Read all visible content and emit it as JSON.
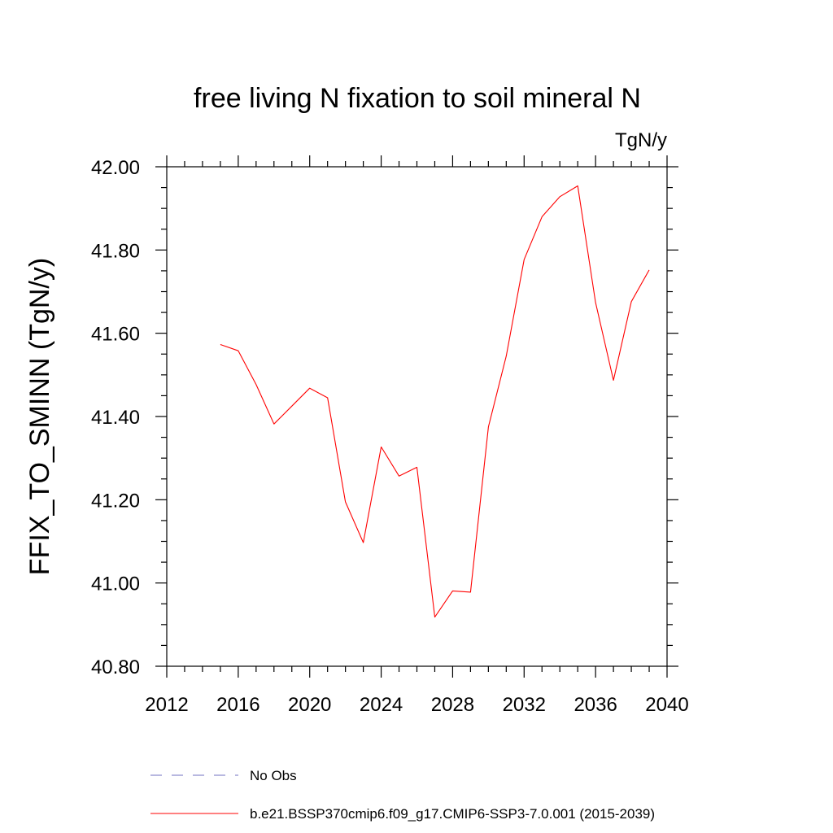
{
  "chart_data": {
    "type": "line",
    "title": "free living N fixation to soil mineral N",
    "units": "TgN/y",
    "ylabel": "FFIX_TO_SMINN  (TgN/y)",
    "xlabel": "",
    "xlim": [
      2012,
      2040
    ],
    "ylim": [
      40.8,
      42.0
    ],
    "xticks": [
      2012,
      2016,
      2020,
      2024,
      2028,
      2032,
      2036,
      2040
    ],
    "xtick_labels": [
      "2012",
      "2016",
      "2020",
      "2024",
      "2028",
      "2032",
      "2036",
      "2040"
    ],
    "yticks": [
      40.8,
      41.0,
      41.2,
      41.4,
      41.6,
      41.8,
      42.0
    ],
    "ytick_labels": [
      "40.80",
      "41.00",
      "41.20",
      "41.40",
      "41.60",
      "41.80",
      "42.00"
    ],
    "grid": false,
    "series": [
      {
        "name": "b.e21.BSSP370cmip6.f09_g17.CMIP6-SSP3-7.0.001 (2015-2039)",
        "color": "#ff0000",
        "dash": "solid",
        "x": [
          2015,
          2016,
          2017,
          2018,
          2019,
          2020,
          2021,
          2022,
          2023,
          2024,
          2025,
          2026,
          2027,
          2028,
          2029,
          2030,
          2031,
          2032,
          2033,
          2034,
          2035,
          2036,
          2037,
          2038,
          2039
        ],
        "values": [
          41.573,
          41.558,
          41.477,
          41.382,
          41.425,
          41.468,
          41.445,
          41.195,
          41.097,
          41.327,
          41.257,
          41.278,
          40.918,
          40.981,
          40.978,
          41.375,
          41.545,
          41.777,
          41.88,
          41.928,
          41.954,
          41.674,
          41.487,
          41.676,
          41.752
        ]
      }
    ],
    "legend": {
      "placement": "bottom-left",
      "entries": [
        {
          "label": "No Obs",
          "color": "#7070c0",
          "dash": "dashed"
        },
        {
          "label": "b.e21.BSSP370cmip6.f09_g17.CMIP6-SSP3-7.0.001 (2015-2039)",
          "color": "#ff0000",
          "dash": "solid"
        }
      ]
    }
  }
}
